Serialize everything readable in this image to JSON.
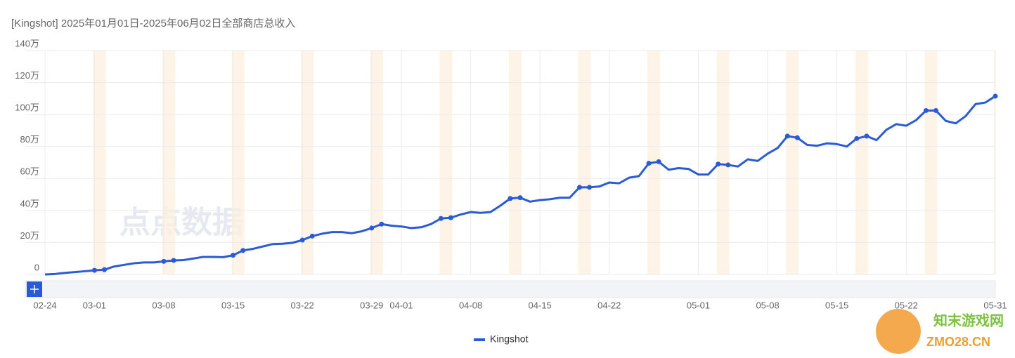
{
  "chart_data": {
    "type": "line",
    "title": "[Kingshot] 2025年01月01日-2025年06月02日全部商店总收入",
    "categories": [
      "02-24",
      null,
      null,
      null,
      null,
      "03-01",
      null,
      null,
      null,
      null,
      null,
      null,
      "03-08",
      null,
      null,
      null,
      null,
      null,
      null,
      "03-15",
      null,
      null,
      null,
      null,
      null,
      null,
      "03-22",
      null,
      null,
      null,
      null,
      null,
      null,
      "03-29",
      null,
      null,
      "04-01",
      null,
      null,
      null,
      null,
      null,
      null,
      "04-08",
      null,
      null,
      null,
      null,
      null,
      null,
      "04-15",
      null,
      null,
      null,
      null,
      null,
      null,
      "04-22",
      null,
      null,
      null,
      null,
      null,
      null,
      null,
      null,
      "05-01",
      null,
      null,
      null,
      null,
      null,
      null,
      "05-08",
      null,
      null,
      null,
      null,
      null,
      null,
      "05-15",
      null,
      null,
      null,
      null,
      null,
      null,
      "05-22",
      null,
      null,
      null,
      null,
      null,
      null,
      null,
      null,
      "05-31"
    ],
    "series": [
      {
        "name": "Kingshot",
        "color": "#2a5bd7",
        "values": [
          0,
          0.3,
          1,
          1.5,
          2,
          2.6,
          3,
          5,
          6,
          7,
          7.5,
          7.5,
          8.2,
          8.8,
          9,
          10,
          11,
          11,
          10.8,
          12,
          15,
          16,
          17.5,
          19,
          19.2,
          19.8,
          21.5,
          24,
          25.5,
          26.5,
          26.5,
          25.8,
          27,
          29,
          31.5,
          30.5,
          30,
          29,
          29.5,
          31.5,
          35,
          35.5,
          37.5,
          39,
          38.5,
          39,
          43,
          47.5,
          48,
          45.5,
          46.5,
          47,
          48,
          48,
          54.5,
          54.5,
          55,
          57.5,
          57,
          60.5,
          61.5,
          69.5,
          70.5,
          65.5,
          66.5,
          66,
          62.5,
          62.5,
          69,
          68.5,
          67.5,
          72,
          71,
          75.5,
          79,
          86.5,
          85.5,
          81,
          80.5,
          82,
          81.5,
          80,
          85,
          86.5,
          84,
          90.5,
          94,
          93,
          96.5,
          102.5,
          102.5,
          96,
          94.5,
          99,
          106.5,
          107.5,
          111.5
        ]
      }
    ],
    "ylim": [
      0,
      140
    ],
    "yticks": [
      0,
      {
        "value": 20,
        "label": "20万"
      },
      {
        "value": 40,
        "label": "40万"
      },
      {
        "value": 60,
        "label": "60万"
      },
      {
        "value": 80,
        "label": "80万"
      },
      {
        "value": 100,
        "label": "100万"
      },
      {
        "value": 120,
        "label": "120万"
      },
      {
        "value": 140,
        "label": "140万"
      }
    ],
    "grid": true,
    "legend": "bottom",
    "watermarks": [
      "点点数据",
      "知末游戏网",
      "ZMO28.CN"
    ]
  }
}
